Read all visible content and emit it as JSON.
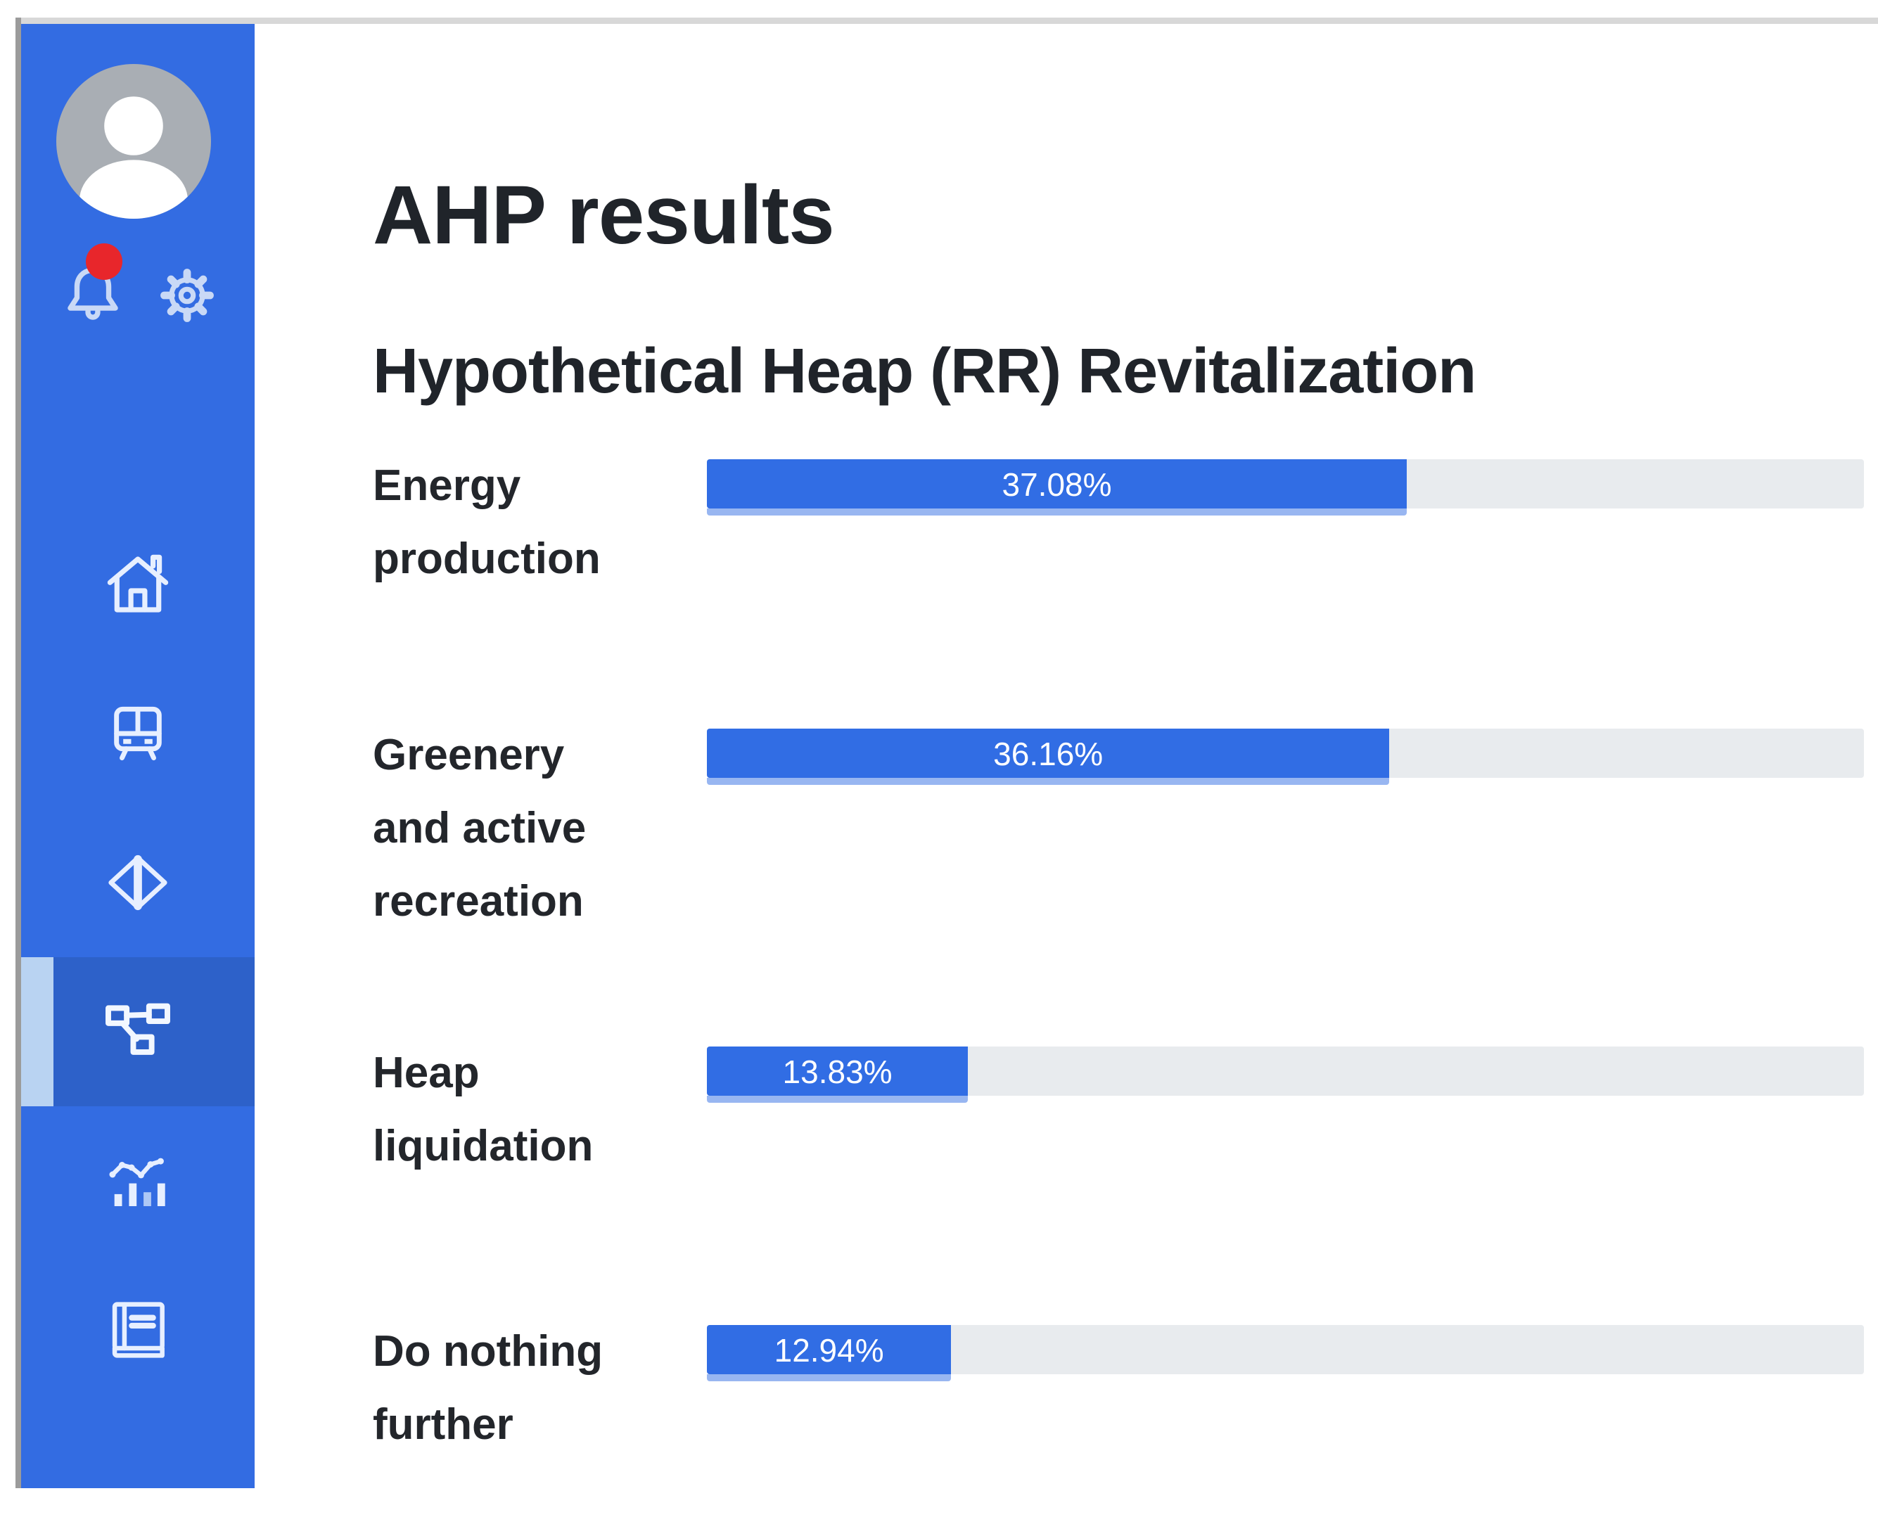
{
  "window": {
    "bg": "#ffffff",
    "top_divider_color": "#d8d8d8",
    "left_edge_color": "#9b9b9b"
  },
  "sidebar": {
    "bg": "#336ce2",
    "selected_bg": "#2d61c9",
    "indicator_color": "#b9d3f2",
    "icon_color": "#e7efff",
    "toolbar_icon_color": "#c9d9f6",
    "avatar": {
      "bg": "#a9aeb4",
      "figure_color": "#ffffff"
    },
    "notification": {
      "badge_color": "#e8262b",
      "has_unread": true
    },
    "items": [
      {
        "icon": "home-icon",
        "selected": false
      },
      {
        "icon": "tram-icon",
        "selected": false
      },
      {
        "icon": "diamond-compare-icon",
        "selected": false
      },
      {
        "icon": "flowchart-icon",
        "selected": true
      },
      {
        "icon": "stats-icon",
        "selected": false
      },
      {
        "icon": "book-icon",
        "selected": false
      }
    ]
  },
  "header": {
    "title": "AHP results",
    "subtitle": "Hypothetical Heap (RR) Revitalization"
  },
  "chart": {
    "bar_color": "#316de4",
    "track_color": "#e8ebee",
    "value_text_color": "#ffffff",
    "axis_max_pct": 61.3,
    "rows": [
      {
        "label": "Energy\nproduction",
        "value": 37.08,
        "value_label": "37.08%"
      },
      {
        "label": "Greenery\nand active\nrecreation",
        "value": 36.16,
        "value_label": "36.16%"
      },
      {
        "label": "Heap\nliquidation",
        "value": 13.83,
        "value_label": "13.83%"
      },
      {
        "label": "Do nothing\nfurther",
        "value": 12.94,
        "value_label": "12.94%"
      }
    ]
  },
  "chart_data": {
    "type": "bar",
    "orientation": "horizontal",
    "title": "AHP results",
    "subtitle": "Hypothetical Heap (RR) Revitalization",
    "categories": [
      "Energy production",
      "Greenery and active recreation",
      "Heap liquidation",
      "Do nothing further"
    ],
    "values": [
      37.08,
      36.16,
      13.83,
      12.94
    ],
    "value_labels": [
      "37.08%",
      "36.16%",
      "13.83%",
      "12.94%"
    ],
    "unit": "%",
    "bar_color": "#316de4",
    "track_color": "#e8ebee",
    "value_label_position": "inside-center",
    "grid": false,
    "legend": false
  }
}
